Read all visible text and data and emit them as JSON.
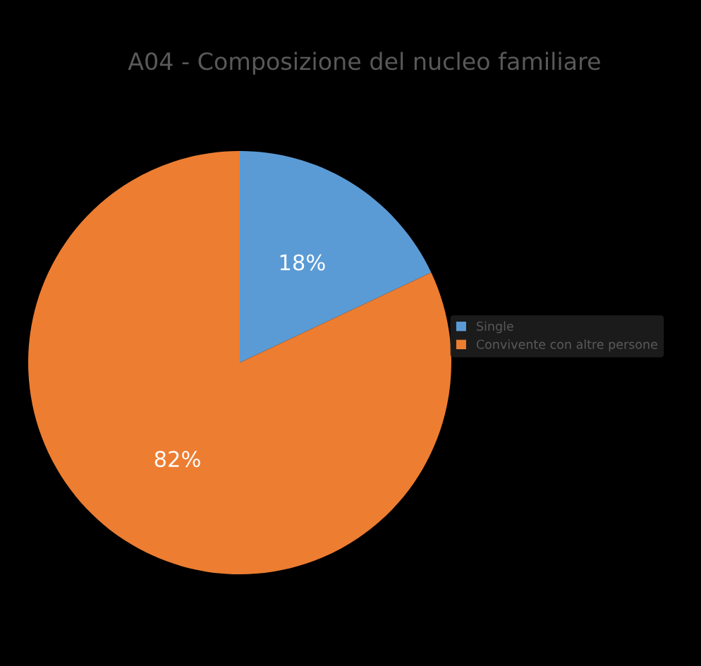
{
  "chart_data": {
    "type": "pie",
    "title": "A04 - Composizione del nucleo familiare",
    "categories": [
      "Single",
      "Convivente con altre persone"
    ],
    "values": [
      18,
      82
    ],
    "colors": [
      "#5b9bd5",
      "#ed7d31"
    ],
    "value_labels": [
      "18%",
      "82%"
    ],
    "legend": "right"
  }
}
